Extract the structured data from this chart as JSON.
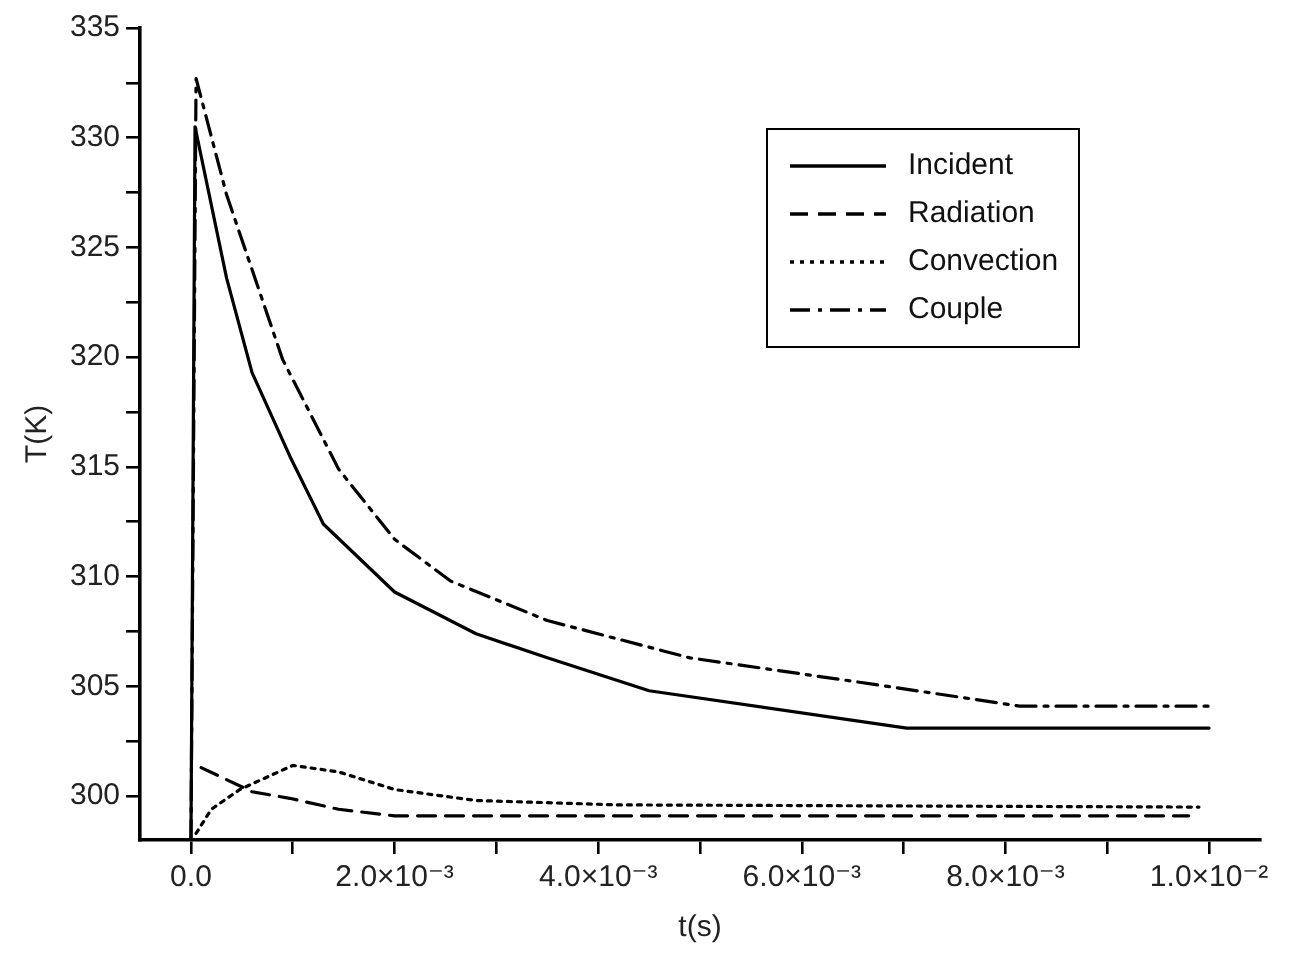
{
  "chart_data": {
    "type": "line",
    "xlabel": "t(s)",
    "ylabel": "T(K)",
    "xlim": [
      -0.0005,
      0.0105
    ],
    "ylim": [
      298,
      335
    ],
    "xticks": [
      {
        "value": 0,
        "label": "0.0"
      },
      {
        "value": 0.001,
        "label": null
      },
      {
        "value": 0.002,
        "label": "2.0×10⁻³"
      },
      {
        "value": 0.003,
        "label": null
      },
      {
        "value": 0.004,
        "label": "4.0×10⁻³"
      },
      {
        "value": 0.005,
        "label": null
      },
      {
        "value": 0.006,
        "label": "6.0×10⁻³"
      },
      {
        "value": 0.007,
        "label": null
      },
      {
        "value": 0.008,
        "label": "8.0×10⁻³"
      },
      {
        "value": 0.009,
        "label": null
      },
      {
        "value": 0.01,
        "label": "1.0×10⁻²"
      }
    ],
    "yticks": [
      300,
      {
        "value": 302.5,
        "label": null
      },
      305,
      {
        "value": 307.5,
        "label": null
      },
      310,
      {
        "value": 312.5,
        "label": null
      },
      315,
      {
        "value": 317.5,
        "label": null
      },
      320,
      {
        "value": 322.5,
        "label": null
      },
      325,
      {
        "value": 327.5,
        "label": null
      },
      330,
      {
        "value": 332.5,
        "label": null
      },
      335
    ],
    "grid": false,
    "legend": "top right",
    "marker": "none",
    "series": [
      {
        "name": "Incident",
        "color": "#000000",
        "line_style": "solid",
        "x": [
          0,
          4e-05,
          0.00035,
          0.0006,
          0.00097,
          0.0013,
          0.002,
          0.0028,
          0.0035,
          0.0045,
          0.00703,
          0.01
        ],
        "values": [
          298,
          330.5,
          323.6,
          319.3,
          315.5,
          312.4,
          309.3,
          307.4,
          306.3,
          304.8,
          303.1,
          303.1
        ]
      },
      {
        "name": "Radiation",
        "color": "#000000",
        "line_style": "dashed",
        "x": [
          0.0001,
          0.0006,
          0.00097,
          0.00145,
          0.002,
          0.0098
        ],
        "values": [
          301.3,
          300.2,
          299.9,
          299.4,
          299.1,
          299.1
        ]
      },
      {
        "name": "Convection",
        "color": "#000000",
        "line_style": "dotted",
        "x": [
          5e-05,
          0.0002,
          0.00048,
          0.001,
          0.00145,
          0.002,
          0.0028,
          0.0042,
          0.0099
        ],
        "values": [
          298.3,
          299.4,
          300.3,
          301.4,
          301.1,
          300.3,
          299.8,
          299.6,
          299.5
        ]
      },
      {
        "name": "Couple",
        "color": "#000000",
        "line_style": "dashdot",
        "x": [
          0,
          5e-05,
          0.00035,
          0.0009,
          0.00145,
          0.002,
          0.00255,
          0.0035,
          0.0049,
          0.00655,
          0.00814,
          0.01
        ],
        "values": [
          298,
          332.7,
          327.4,
          319.9,
          314.9,
          311.7,
          309.8,
          308,
          306.3,
          305.2,
          304.1,
          304.1
        ]
      }
    ]
  }
}
